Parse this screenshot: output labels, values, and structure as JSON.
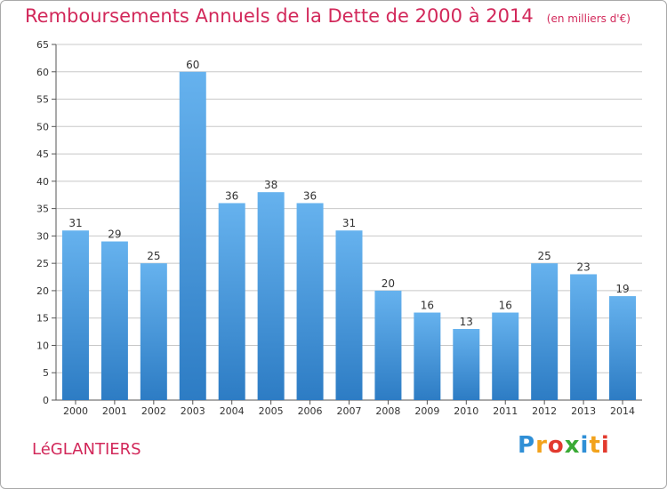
{
  "title": "Remboursements Annuels de la Dette de 2000 à 2014",
  "subtitle": "(en milliers d'€)",
  "commune": "LéGLANTIERS",
  "logo": {
    "text": "Proxiti",
    "letters": [
      {
        "ch": "P",
        "color": "#2f8fd6"
      },
      {
        "ch": "r",
        "color": "#f2a21c"
      },
      {
        "ch": "o",
        "color": "#e23a2e"
      },
      {
        "ch": "x",
        "color": "#3aaa35"
      },
      {
        "ch": "i",
        "color": "#2f8fd6"
      },
      {
        "ch": "t",
        "color": "#f2a21c"
      },
      {
        "ch": "i",
        "color": "#e23a2e"
      }
    ]
  },
  "colors": {
    "accent": "#d2285a",
    "bar_top": "#66b2ee",
    "bar_bottom": "#2d7cc4",
    "grid": "#c8c8c8"
  },
  "chart_data": {
    "type": "bar",
    "title": "Remboursements Annuels de la Dette de 2000 à 2014",
    "subtitle": "(en milliers d'€)",
    "xlabel": "",
    "ylabel": "",
    "categories": [
      "2000",
      "2001",
      "2002",
      "2003",
      "2004",
      "2005",
      "2006",
      "2007",
      "2008",
      "2009",
      "2010",
      "2011",
      "2012",
      "2013",
      "2014"
    ],
    "values": [
      31,
      29,
      25,
      60,
      36,
      38,
      36,
      31,
      20,
      16,
      13,
      16,
      25,
      23,
      19
    ],
    "ylim": [
      0,
      65
    ],
    "yticks": [
      0,
      5,
      10,
      15,
      20,
      25,
      30,
      35,
      40,
      45,
      50,
      55,
      60,
      65
    ],
    "grid": true,
    "data_labels": true
  }
}
